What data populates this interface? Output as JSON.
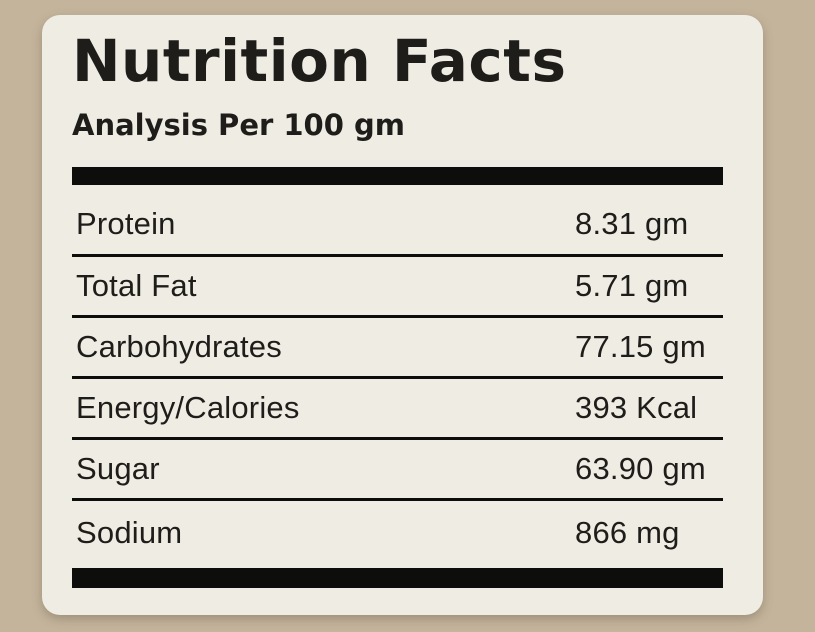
{
  "colors": {
    "background": "#c4b49c",
    "card": "#efece4",
    "ink": "#1e1d1a",
    "rule": "#0d0d0b"
  },
  "card": {
    "title": "Nutrition Facts",
    "subtitle": "Analysis Per 100 gm"
  },
  "rows": [
    {
      "name": "Protein",
      "value": "8.31 gm"
    },
    {
      "name": "Total Fat",
      "value": "5.71 gm"
    },
    {
      "name": "Carbohydrates",
      "value": "77.15 gm"
    },
    {
      "name": "Energy/Calories",
      "value": "393 Kcal"
    },
    {
      "name": "Sugar",
      "value": "63.90 gm"
    },
    {
      "name": "Sodium",
      "value": "866 mg"
    }
  ]
}
